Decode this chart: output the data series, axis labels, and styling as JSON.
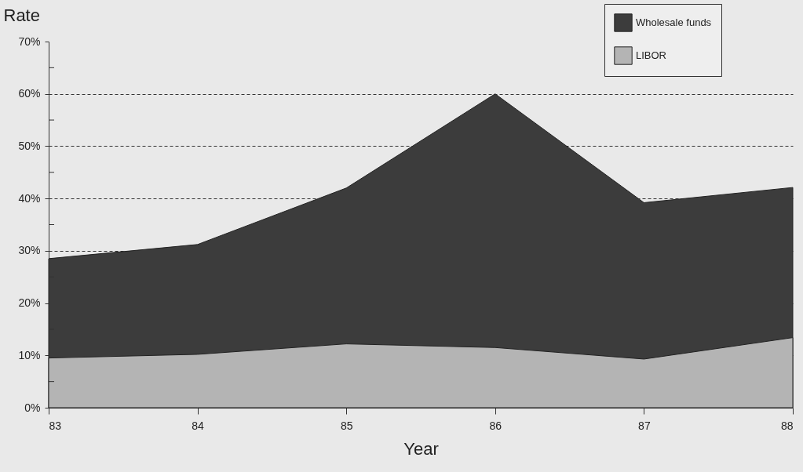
{
  "chart_data": {
    "type": "area",
    "xlabel": "Year",
    "ylabel": "Rate",
    "x": [
      83,
      84,
      85,
      86,
      87,
      88
    ],
    "series": [
      {
        "name": "Wholesale funds",
        "color": "#3c3c3c",
        "values": [
          28.5,
          31.2,
          42.0,
          60.0,
          39.2,
          42.1
        ]
      },
      {
        "name": "LIBOR",
        "color": "#b4b4b4",
        "values": [
          9.5,
          10.2,
          12.2,
          11.5,
          9.3,
          13.4
        ]
      }
    ],
    "xlim": [
      83,
      88
    ],
    "xticks": [
      83,
      84,
      85,
      86,
      87,
      88
    ],
    "ylim": [
      0,
      70
    ],
    "yticks": [
      {
        "value": 0,
        "label": "0%"
      },
      {
        "value": 5,
        "label": null
      },
      {
        "value": 10,
        "label": "10%"
      },
      {
        "value": 15,
        "label": null
      },
      {
        "value": 20,
        "label": "20%"
      },
      {
        "value": 25,
        "label": null
      },
      {
        "value": 30,
        "label": "30%"
      },
      {
        "value": 35,
        "label": null
      },
      {
        "value": 40,
        "label": "40%"
      },
      {
        "value": 45,
        "label": null
      },
      {
        "value": 50,
        "label": "50%"
      },
      {
        "value": 55,
        "label": null
      },
      {
        "value": 60,
        "label": "60%"
      },
      {
        "value": 65,
        "label": null
      },
      {
        "value": 70,
        "label": "70%"
      }
    ],
    "grid": "y",
    "line_style": "dashed",
    "legend": "top right"
  }
}
